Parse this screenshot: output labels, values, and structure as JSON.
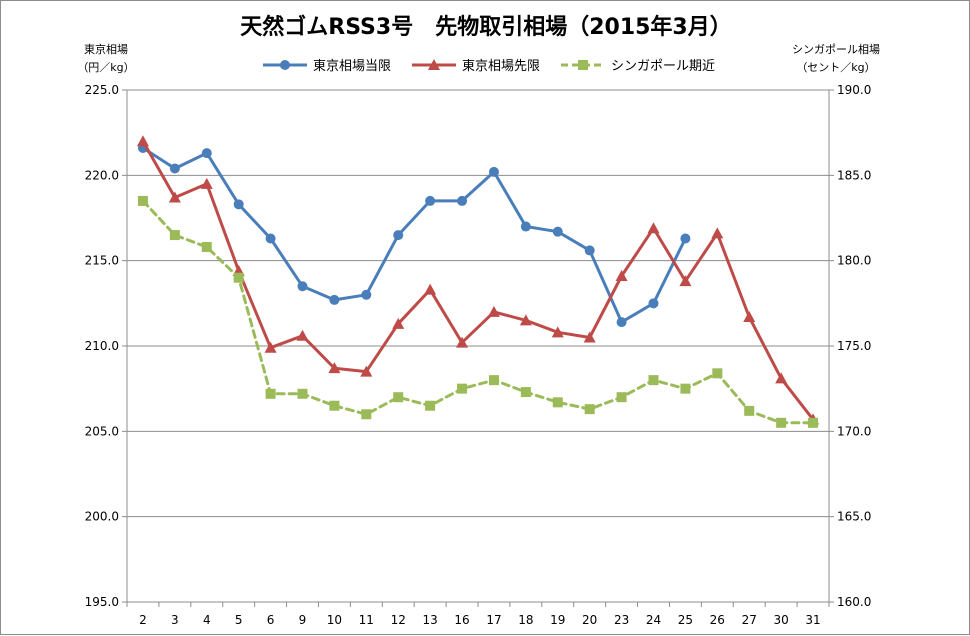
{
  "chart_data": {
    "type": "line",
    "title": "天然ゴムRSS3号　先物取引相場（2015年3月）",
    "y_left_label_line1": "東京相場",
    "y_left_label_line2": "（円／kg）",
    "y_right_label_line1": "シンガポール相場",
    "y_right_label_line2": "（セント／kg）",
    "categories": [
      "2",
      "3",
      "4",
      "5",
      "6",
      "9",
      "10",
      "11",
      "12",
      "13",
      "16",
      "17",
      "18",
      "19",
      "20",
      "23",
      "24",
      "25",
      "26",
      "27",
      "30",
      "31"
    ],
    "ylim_left": [
      195,
      225
    ],
    "ylim_right": [
      160,
      190
    ],
    "y_ticks_left": [
      "195.0",
      "200.0",
      "205.0",
      "210.0",
      "215.0",
      "220.0",
      "225.0"
    ],
    "y_ticks_right": [
      "160.0",
      "165.0",
      "170.0",
      "175.0",
      "180.0",
      "185.0",
      "190.0"
    ],
    "grid": true,
    "legend_position": "top",
    "series": [
      {
        "name": "東京相場当限",
        "axis": "left",
        "color": "#4a7ebb",
        "marker": "circle",
        "dashed": false,
        "values": [
          221.6,
          220.4,
          221.3,
          218.3,
          216.3,
          213.5,
          212.7,
          213.0,
          216.5,
          218.5,
          218.5,
          220.2,
          217.0,
          216.7,
          215.6,
          211.4,
          212.5,
          216.3,
          null,
          null,
          null,
          null
        ]
      },
      {
        "name": "東京相場先限",
        "axis": "left",
        "color": "#be4b48",
        "marker": "triangle",
        "dashed": false,
        "values": [
          222.0,
          218.7,
          219.5,
          214.4,
          209.9,
          210.6,
          208.7,
          208.5,
          211.3,
          213.3,
          210.2,
          212.0,
          211.5,
          210.8,
          210.5,
          214.1,
          216.9,
          213.8,
          216.6,
          211.7,
          208.1,
          205.7
        ]
      },
      {
        "name": "シンガポール期近",
        "axis": "right",
        "color": "#9bbb59",
        "marker": "square",
        "dashed": true,
        "values": [
          183.5,
          181.5,
          180.8,
          179.0,
          172.2,
          172.2,
          171.5,
          171.0,
          172.0,
          171.5,
          172.5,
          173.0,
          172.3,
          171.7,
          171.3,
          172.0,
          173.0,
          172.5,
          173.4,
          171.2,
          170.5,
          170.5
        ]
      }
    ]
  }
}
